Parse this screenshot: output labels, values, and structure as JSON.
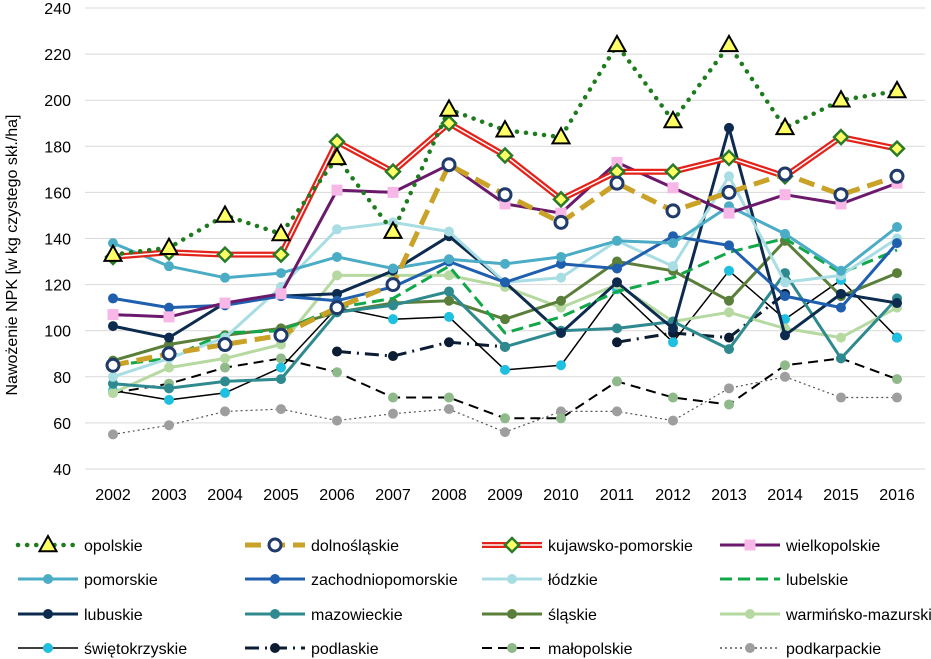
{
  "chart_data": {
    "type": "line",
    "title": "",
    "xlabel": "",
    "ylabel": "Nawożenie NPK [w kg czystego skł./ha]",
    "ylim": [
      40,
      240
    ],
    "yticks": [
      40,
      60,
      80,
      100,
      120,
      140,
      160,
      180,
      200,
      220,
      240
    ],
    "grid": "horizontal",
    "legend_position": "bottom",
    "categories": [
      "2002",
      "2003",
      "2004",
      "2005",
      "2006",
      "2007",
      "2008",
      "2009",
      "2010",
      "2011",
      "2012",
      "2013",
      "2014",
      "2015",
      "2016"
    ],
    "series": [
      {
        "name": "opolskie",
        "color": "#1e7b1e",
        "values": [
          133,
          136,
          150,
          142,
          175,
          143,
          196,
          187,
          184,
          224,
          191,
          224,
          188,
          200,
          204
        ]
      },
      {
        "name": "dolnośląskie",
        "color": "#c9a227",
        "values": [
          85,
          90,
          94,
          98,
          110,
          120,
          172,
          159,
          147,
          164,
          152,
          160,
          168,
          159,
          167
        ]
      },
      {
        "name": "kujawsko-pomorskie",
        "color": "#e32219",
        "values": [
          132,
          134,
          133,
          133,
          182,
          169,
          190,
          176,
          157,
          169,
          169,
          175,
          167,
          184,
          179
        ]
      },
      {
        "name": "wielkopolskie",
        "color": "#6b1a6b",
        "values": [
          107,
          106,
          112,
          116,
          161,
          160,
          172,
          155,
          151,
          173,
          162,
          151,
          159,
          155,
          164
        ]
      },
      {
        "name": "pomorskie",
        "color": "#4bacc6",
        "values": [
          138,
          128,
          123,
          125,
          132,
          127,
          131,
          129,
          132,
          139,
          138,
          154,
          142,
          126,
          145
        ]
      },
      {
        "name": "zachodniopomorskie",
        "color": "#1f5fae",
        "values": [
          114,
          110,
          111,
          115,
          113,
          119,
          130,
          121,
          129,
          127,
          141,
          137,
          115,
          110,
          138
        ]
      },
      {
        "name": "łódzkie",
        "color": "#a8dde3",
        "values": [
          80,
          88,
          97,
          119,
          144,
          147,
          143,
          121,
          123,
          139,
          128,
          167,
          121,
          124,
          140
        ]
      },
      {
        "name": "lubelskie",
        "color": "#12a84a",
        "values": [
          85,
          88,
          99,
          100,
          110,
          114,
          128,
          99,
          106,
          117,
          123,
          134,
          140,
          125,
          135
        ]
      },
      {
        "name": "lubuskie",
        "color": "#0d2b4e",
        "values": [
          102,
          97,
          112,
          115,
          116,
          126,
          141,
          121,
          99,
          121,
          101,
          188,
          98,
          116,
          112
        ]
      },
      {
        "name": "mazowieckie",
        "color": "#2f8a8f",
        "values": [
          77,
          75,
          78,
          79,
          108,
          111,
          117,
          93,
          100,
          101,
          104,
          92,
          125,
          88,
          114
        ]
      },
      {
        "name": "śląskie",
        "color": "#5a7f3a",
        "values": [
          87,
          94,
          98,
          101,
          108,
          112,
          113,
          105,
          113,
          130,
          126,
          113,
          139,
          115,
          125
        ]
      },
      {
        "name": "warmińsko-mazurskie",
        "color": "#b6d9a1",
        "values": [
          73,
          84,
          88,
          94,
          124,
          124,
          124,
          119,
          110,
          120,
          104,
          108,
          101,
          97,
          110
        ]
      },
      {
        "name": "świętokrzyskie",
        "color": "#1fbfe0",
        "values": [
          74,
          70,
          73,
          84,
          110,
          105,
          106,
          83,
          85,
          118,
          95,
          126,
          105,
          122,
          97
        ]
      },
      {
        "name": "podlaskie",
        "color": "#0b1c33",
        "values": [
          null,
          null,
          null,
          null,
          91,
          89,
          95,
          93,
          null,
          95,
          99,
          97,
          116,
          null,
          97
        ]
      },
      {
        "name": "małopolskie",
        "color": "#8fb98a",
        "values": [
          73,
          77,
          84,
          88,
          82,
          71,
          71,
          62,
          62,
          78,
          71,
          68,
          85,
          88,
          79
        ]
      },
      {
        "name": "podkarpackie",
        "color": "#9e9e9e",
        "values": [
          55,
          59,
          65,
          66,
          61,
          64,
          66,
          56,
          65,
          65,
          61,
          75,
          80,
          71,
          71
        ]
      }
    ]
  }
}
